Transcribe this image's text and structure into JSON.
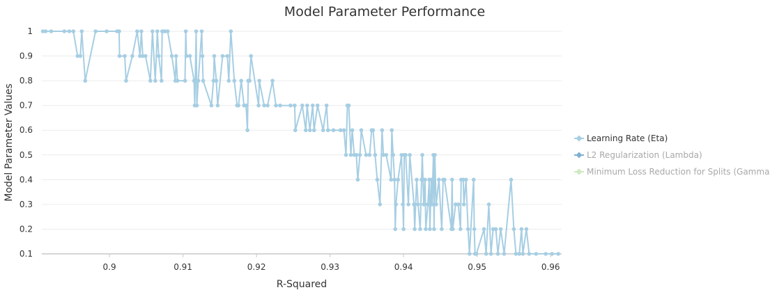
{
  "chart_data": {
    "type": "line",
    "title": "Model Parameter Performance",
    "xlabel": "R-Squared",
    "ylabel": "Model Parameter Values",
    "xlim": [
      0.8908,
      0.9615
    ],
    "ylim": [
      0.1,
      1
    ],
    "x_ticks": [
      0.9,
      0.91,
      0.92,
      0.93,
      0.94,
      0.95,
      0.96
    ],
    "x_tick_labels": [
      "0.9",
      "0.91",
      "0.92",
      "0.93",
      "0.94",
      "0.95",
      "0.96"
    ],
    "y_ticks": [
      0.1,
      0.2,
      0.3,
      0.4,
      0.5,
      0.6,
      0.7,
      0.8,
      0.9,
      1
    ],
    "y_tick_labels": [
      "0.1",
      "0.2",
      "0.3",
      "0.4",
      "0.5",
      "0.6",
      "0.7",
      "0.8",
      "0.9",
      "1"
    ],
    "grid": "horizontal",
    "legend_position": "right",
    "series": [
      {
        "name": "Learning Rate (Eta)",
        "color": "#a6cee3",
        "visible": true,
        "points": [
          [
            0.89094,
            1
          ],
          [
            0.89132,
            1
          ],
          [
            0.89208,
            1
          ],
          [
            0.89387,
            1
          ],
          [
            0.89453,
            1
          ],
          [
            0.89509,
            1
          ],
          [
            0.89566,
            0.9
          ],
          [
            0.89604,
            0.9
          ],
          [
            0.89623,
            1
          ],
          [
            0.8967,
            0.8
          ],
          [
            0.89811,
            1
          ],
          [
            0.89962,
            1
          ],
          [
            0.90104,
            1
          ],
          [
            0.90132,
            1
          ],
          [
            0.90137,
            0.9
          ],
          [
            0.90208,
            0.9
          ],
          [
            0.90226,
            0.8
          ],
          [
            0.90311,
            0.9
          ],
          [
            0.90377,
            1
          ],
          [
            0.90415,
            0.9
          ],
          [
            0.90434,
            1
          ],
          [
            0.90453,
            0.9
          ],
          [
            0.9049,
            0.9
          ],
          [
            0.90557,
            0.8
          ],
          [
            0.90585,
            1
          ],
          [
            0.90623,
            0.8
          ],
          [
            0.90651,
            1
          ],
          [
            0.9067,
            0.9
          ],
          [
            0.90708,
            0.8
          ],
          [
            0.90717,
            1
          ],
          [
            0.90736,
            1
          ],
          [
            0.90755,
            1
          ],
          [
            0.90792,
            1
          ],
          [
            0.90849,
            0.9
          ],
          [
            0.90896,
            0.8
          ],
          [
            0.90906,
            0.9
          ],
          [
            0.90925,
            0.8
          ],
          [
            0.91028,
            0.8
          ],
          [
            0.91038,
            1
          ],
          [
            0.91047,
            0.9
          ],
          [
            0.91094,
            0.9
          ],
          [
            0.91151,
            0.8
          ],
          [
            0.9116,
            0.7
          ],
          [
            0.91179,
            1
          ],
          [
            0.91189,
            0.7
          ],
          [
            0.91208,
            0.8
          ],
          [
            0.91255,
            1
          ],
          [
            0.91264,
            0.9
          ],
          [
            0.91274,
            0.8
          ],
          [
            0.91387,
            0.7
          ],
          [
            0.91415,
            0.8
          ],
          [
            0.91425,
            0.9
          ],
          [
            0.91453,
            0.8
          ],
          [
            0.91472,
            0.7
          ],
          [
            0.91538,
            0.9
          ],
          [
            0.91604,
            0.9
          ],
          [
            0.91623,
            0.8
          ],
          [
            0.91651,
            1
          ],
          [
            0.91698,
            0.8
          ],
          [
            0.91736,
            0.7
          ],
          [
            0.91755,
            0.7
          ],
          [
            0.91792,
            0.8
          ],
          [
            0.9183,
            0.7
          ],
          [
            0.91858,
            0.7
          ],
          [
            0.91877,
            0.6
          ],
          [
            0.91887,
            0.8
          ],
          [
            0.91906,
            0.8
          ],
          [
            0.91925,
            0.9
          ],
          [
            0.92028,
            0.7
          ],
          [
            0.92038,
            0.8
          ],
          [
            0.92104,
            0.7
          ],
          [
            0.92151,
            0.7
          ],
          [
            0.92217,
            0.8
          ],
          [
            0.92264,
            0.7
          ],
          [
            0.92321,
            0.7
          ],
          [
            0.92462,
            0.7
          ],
          [
            0.92519,
            0.7
          ],
          [
            0.92528,
            0.6
          ],
          [
            0.92623,
            0.7
          ],
          [
            0.9267,
            0.6
          ],
          [
            0.92689,
            0.7
          ],
          [
            0.92726,
            0.6
          ],
          [
            0.92764,
            0.7
          ],
          [
            0.92783,
            0.6
          ],
          [
            0.9283,
            0.7
          ],
          [
            0.92906,
            0.6
          ],
          [
            0.92953,
            0.7
          ],
          [
            0.92972,
            0.6
          ],
          [
            0.93047,
            0.6
          ],
          [
            0.93142,
            0.6
          ],
          [
            0.93189,
            0.6
          ],
          [
            0.93217,
            0.5
          ],
          [
            0.93236,
            0.7
          ],
          [
            0.93255,
            0.7
          ],
          [
            0.93283,
            0.5
          ],
          [
            0.93302,
            0.6
          ],
          [
            0.9333,
            0.5
          ],
          [
            0.93358,
            0.5
          ],
          [
            0.93377,
            0.4
          ],
          [
            0.93406,
            0.5
          ],
          [
            0.93425,
            0.6
          ],
          [
            0.93491,
            0.5
          ],
          [
            0.93538,
            0.5
          ],
          [
            0.93566,
            0.6
          ],
          [
            0.93585,
            0.6
          ],
          [
            0.93613,
            0.5
          ],
          [
            0.93642,
            0.4
          ],
          [
            0.93679,
            0.3
          ],
          [
            0.93708,
            0.6
          ],
          [
            0.93726,
            0.5
          ],
          [
            0.93764,
            0.5
          ],
          [
            0.9383,
            0.4
          ],
          [
            0.9384,
            0.6
          ],
          [
            0.93858,
            0.5
          ],
          [
            0.93877,
            0.4
          ],
          [
            0.93887,
            0.2
          ],
          [
            0.93896,
            0.3
          ],
          [
            0.93925,
            0.4
          ],
          [
            0.93972,
            0.5
          ],
          [
            0.9399,
            0.3
          ],
          [
            0.94,
            0.2
          ],
          [
            0.94009,
            0.5
          ],
          [
            0.94028,
            0.5
          ],
          [
            0.94066,
            0.3
          ],
          [
            0.94085,
            0.5
          ],
          [
            0.94142,
            0.3
          ],
          [
            0.94151,
            0.2
          ],
          [
            0.94179,
            0.4
          ],
          [
            0.94198,
            0.3
          ],
          [
            0.94226,
            0.2
          ],
          [
            0.94245,
            0.4
          ],
          [
            0.94255,
            0.5
          ],
          [
            0.94274,
            0.3
          ],
          [
            0.94292,
            0.4
          ],
          [
            0.94302,
            0.2
          ],
          [
            0.9433,
            0.3
          ],
          [
            0.94349,
            0.4
          ],
          [
            0.94358,
            0.2
          ],
          [
            0.94377,
            0.4
          ],
          [
            0.94387,
            0.3
          ],
          [
            0.94406,
            0.5
          ],
          [
            0.94415,
            0.2
          ],
          [
            0.94425,
            0.5
          ],
          [
            0.94443,
            0.3
          ],
          [
            0.94481,
            0.4
          ],
          [
            0.94519,
            0.2
          ],
          [
            0.94538,
            0.4
          ],
          [
            0.94557,
            0.4
          ],
          [
            0.94651,
            0.2
          ],
          [
            0.9466,
            0.4
          ],
          [
            0.9467,
            0.2
          ],
          [
            0.94708,
            0.3
          ],
          [
            0.94745,
            0.3
          ],
          [
            0.94774,
            0.2
          ],
          [
            0.94783,
            0.4
          ],
          [
            0.94811,
            0.4
          ],
          [
            0.94821,
            0.3
          ],
          [
            0.94849,
            0.4
          ],
          [
            0.94877,
            0.2
          ],
          [
            0.94896,
            0.1
          ],
          [
            0.94953,
            0.4
          ],
          [
            0.94962,
            0.2
          ],
          [
            0.94972,
            0.1
          ],
          [
            0.94991,
            0.1
          ],
          [
            0.95094,
            0.2
          ],
          [
            0.95123,
            0.1
          ],
          [
            0.9516,
            0.3
          ],
          [
            0.95189,
            0.1
          ],
          [
            0.95217,
            0.2
          ],
          [
            0.95255,
            0.2
          ],
          [
            0.95283,
            0.1
          ],
          [
            0.95321,
            0.2
          ],
          [
            0.95368,
            0.1
          ],
          [
            0.95462,
            0.4
          ],
          [
            0.955,
            0.2
          ],
          [
            0.95528,
            0.1
          ],
          [
            0.95575,
            0.1
          ],
          [
            0.95604,
            0.2
          ],
          [
            0.95623,
            0.1
          ],
          [
            0.9567,
            0.2
          ],
          [
            0.95708,
            0.1
          ],
          [
            0.95802,
            0.1
          ],
          [
            0.95934,
            0.1
          ],
          [
            0.96019,
            0.1
          ],
          [
            0.96104,
            0.1
          ]
        ]
      },
      {
        "name": "L2 Regularization (Lambda)",
        "color": "#7fb0d4",
        "visible": false,
        "points": []
      },
      {
        "name": "Minimum Loss Reduction for Splits (Gamma)",
        "color": "#cdeac0",
        "visible": false,
        "points": []
      }
    ]
  }
}
